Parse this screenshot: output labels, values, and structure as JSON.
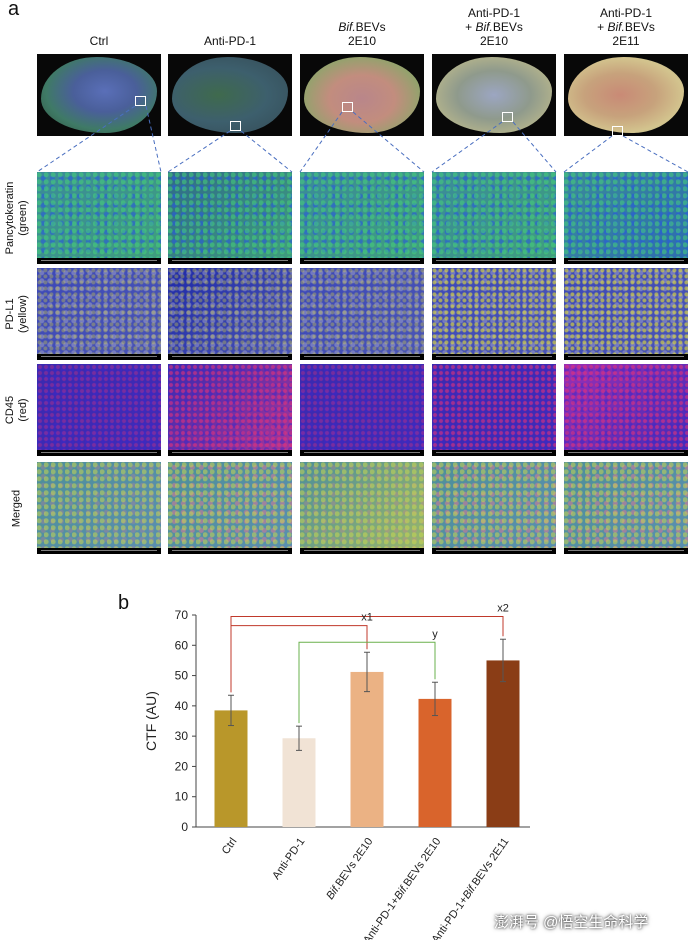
{
  "panel_a": {
    "letter": "a",
    "columns": [
      {
        "lines": [
          "Ctrl"
        ]
      },
      {
        "lines": [
          "Anti-PD-1"
        ]
      },
      {
        "lines": [
          "Bif.BEVs",
          "2E10"
        ]
      },
      {
        "lines": [
          "Anti-PD-1",
          "+ Bif.BEVs",
          "2E10"
        ]
      },
      {
        "lines": [
          "Anti-PD-1",
          "+ Bif.BEVs",
          "2E11"
        ]
      }
    ],
    "rows": [
      {
        "label_lines": [
          "Pancytokeratin",
          "(green)"
        ]
      },
      {
        "label_lines": [
          "PD-L1",
          "(yellow)"
        ]
      },
      {
        "label_lines": [
          "CD45",
          "(red)"
        ]
      },
      {
        "label_lines": [
          "Merged"
        ]
      }
    ],
    "colors": {
      "overview_bg": "#080808",
      "pancytokeratin": "#3fbf5a",
      "pdl1": "#d8d23a",
      "cd45": "#e0307a",
      "dapi": "#2b3fc9",
      "zoom_line": "#4a6fc0"
    }
  },
  "panel_b": {
    "letter": "b",
    "chart_data": {
      "type": "bar",
      "categories": [
        "Ctrl",
        "Anti-PD-1",
        "Bif.BEVs 2E10",
        "Anti-PD-1+Bif.BEVs 2E10",
        "Anti-PD-1+Bif.BEVs 2E11"
      ],
      "values": [
        38.5,
        29.3,
        51.2,
        42.3,
        55.0
      ],
      "errors": [
        5.0,
        4.0,
        6.5,
        5.5,
        7.0
      ],
      "bar_colors": [
        "#b9972a",
        "#f1e3d5",
        "#ebb284",
        "#d9642c",
        "#8a3d16"
      ],
      "ylabel": "CTF (AU)",
      "xlabel": "",
      "ylim": [
        0,
        70
      ],
      "yticks": [
        0,
        10,
        20,
        30,
        40,
        50,
        60,
        70
      ],
      "grid": false,
      "brackets": [
        {
          "from": 0,
          "to": 4,
          "label": "x2",
          "color": "#c0392b"
        },
        {
          "from": 0,
          "to": 2,
          "label": "x1",
          "color": "#c0392b"
        },
        {
          "from": 1,
          "to": 3,
          "label": "y",
          "color": "#6ab04c"
        }
      ]
    }
  },
  "watermark": "澎湃号 @悟空生命科学"
}
